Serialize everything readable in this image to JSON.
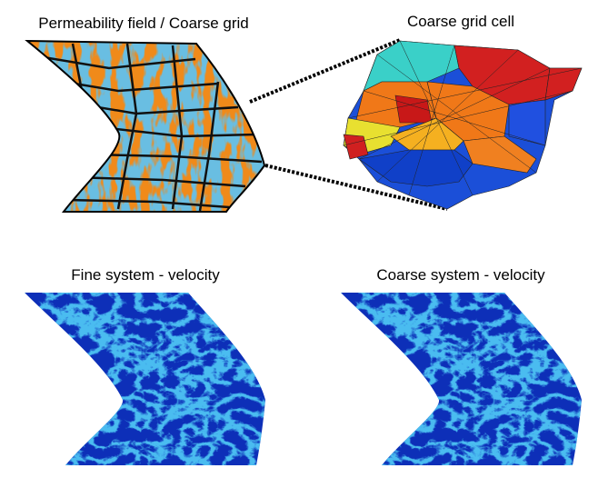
{
  "panels": [
    {
      "title": "Permeability field / Coarse grid"
    },
    {
      "title": "Coarse grid cell"
    },
    {
      "title": "Fine system - velocity"
    },
    {
      "title": "Coarse system - velocity"
    }
  ]
}
